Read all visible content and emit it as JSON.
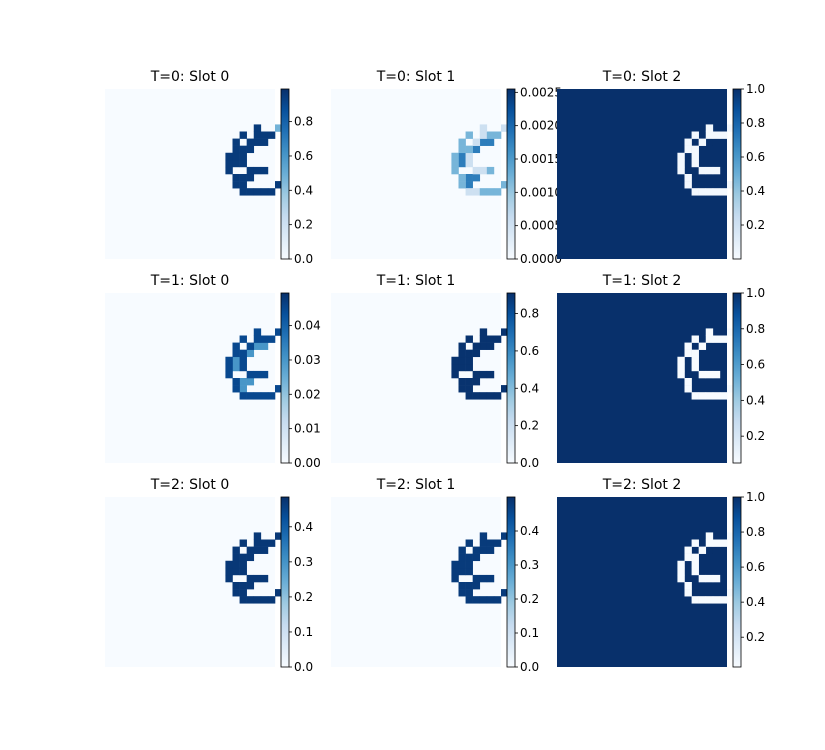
{
  "colormap": {
    "name": "Blues",
    "stops": [
      "#f7fbff",
      "#deebf7",
      "#c6dbef",
      "#9ecae1",
      "#6baed6",
      "#4292c6",
      "#2171b5",
      "#08519c",
      "#08306b"
    ]
  },
  "chart_data": [
    {
      "type": "heatmap",
      "title": "T=0: Slot 0",
      "row": 0,
      "col": 0,
      "grid_size": 24,
      "background_value": 0.0,
      "outline_value": 0.95,
      "interior_value": 0.95,
      "fade_tail": true,
      "vmin": 0.0,
      "vmax": 0.99,
      "colorbar_ticks": [
        "0.0",
        "0.2",
        "0.4",
        "0.6",
        "0.8"
      ],
      "colorbar_tick_values": [
        0.0,
        0.2,
        0.4,
        0.6,
        0.8
      ]
    },
    {
      "type": "heatmap",
      "title": "T=0: Slot 1",
      "row": 0,
      "col": 1,
      "grid_size": 24,
      "background_value": 0.0,
      "outline_value": 0.0012,
      "interior_value": 0.0018,
      "light_ring": true,
      "vmin": 0.0,
      "vmax": 0.00255,
      "colorbar_ticks": [
        "0.0000",
        "0.0005",
        "0.0010",
        "0.0015",
        "0.0020",
        "0.0025"
      ],
      "colorbar_tick_values": [
        0.0,
        0.0005,
        0.001,
        0.0015,
        0.002,
        0.0025
      ]
    },
    {
      "type": "heatmap",
      "title": "T=0: Slot 2",
      "row": 0,
      "col": 2,
      "grid_size": 24,
      "background_value": 1.0,
      "outline_value": 0.02,
      "interior_value": 1.0,
      "vmin": 0.0,
      "vmax": 1.0,
      "colorbar_ticks": [
        "0.2",
        "0.4",
        "0.6",
        "0.8",
        "1.0"
      ],
      "colorbar_tick_values": [
        0.2,
        0.4,
        0.6,
        0.8,
        1.0
      ]
    },
    {
      "type": "heatmap",
      "title": "T=1: Slot 0",
      "row": 1,
      "col": 0,
      "grid_size": 24,
      "background_value": 0.0,
      "outline_value": 0.045,
      "interior_value": 0.03,
      "vmin": 0.0,
      "vmax": 0.0495,
      "colorbar_ticks": [
        "0.00",
        "0.01",
        "0.02",
        "0.03",
        "0.04"
      ],
      "colorbar_tick_values": [
        0.0,
        0.01,
        0.02,
        0.03,
        0.04
      ]
    },
    {
      "type": "heatmap",
      "title": "T=1: Slot 1",
      "row": 1,
      "col": 1,
      "grid_size": 24,
      "background_value": 0.0,
      "outline_value": 0.9,
      "interior_value": 0.9,
      "vmin": 0.0,
      "vmax": 0.91,
      "colorbar_ticks": [
        "0.0",
        "0.2",
        "0.4",
        "0.6",
        "0.8"
      ],
      "colorbar_tick_values": [
        0.0,
        0.2,
        0.4,
        0.6,
        0.8
      ]
    },
    {
      "type": "heatmap",
      "title": "T=1: Slot 2",
      "row": 1,
      "col": 2,
      "grid_size": 24,
      "background_value": 1.0,
      "outline_value": 0.05,
      "interior_value": 1.0,
      "vmin": 0.05,
      "vmax": 1.0,
      "colorbar_ticks": [
        "0.2",
        "0.4",
        "0.6",
        "0.8",
        "1.0"
      ],
      "colorbar_tick_values": [
        0.2,
        0.4,
        0.6,
        0.8,
        1.0
      ]
    },
    {
      "type": "heatmap",
      "title": "T=2: Slot 0",
      "row": 2,
      "col": 0,
      "grid_size": 24,
      "background_value": 0.0,
      "outline_value": 0.47,
      "interior_value": 0.47,
      "vmin": 0.0,
      "vmax": 0.485,
      "colorbar_ticks": [
        "0.0",
        "0.1",
        "0.2",
        "0.3",
        "0.4"
      ],
      "colorbar_tick_values": [
        0.0,
        0.1,
        0.2,
        0.3,
        0.4
      ]
    },
    {
      "type": "heatmap",
      "title": "T=2: Slot 1",
      "row": 2,
      "col": 1,
      "grid_size": 24,
      "background_value": 0.0,
      "outline_value": 0.48,
      "interior_value": 0.48,
      "vmin": 0.0,
      "vmax": 0.5,
      "colorbar_ticks": [
        "0.0",
        "0.1",
        "0.2",
        "0.3",
        "0.4"
      ],
      "colorbar_tick_values": [
        0.0,
        0.1,
        0.2,
        0.3,
        0.4
      ]
    },
    {
      "type": "heatmap",
      "title": "T=2: Slot 2",
      "row": 2,
      "col": 2,
      "grid_size": 24,
      "background_value": 1.0,
      "outline_value": 0.03,
      "interior_value": 1.0,
      "vmin": 0.03,
      "vmax": 1.0,
      "colorbar_ticks": [
        "0.2",
        "0.4",
        "0.6",
        "0.8",
        "1.0"
      ],
      "colorbar_tick_values": [
        0.2,
        0.4,
        0.6,
        0.8,
        1.0
      ]
    }
  ]
}
